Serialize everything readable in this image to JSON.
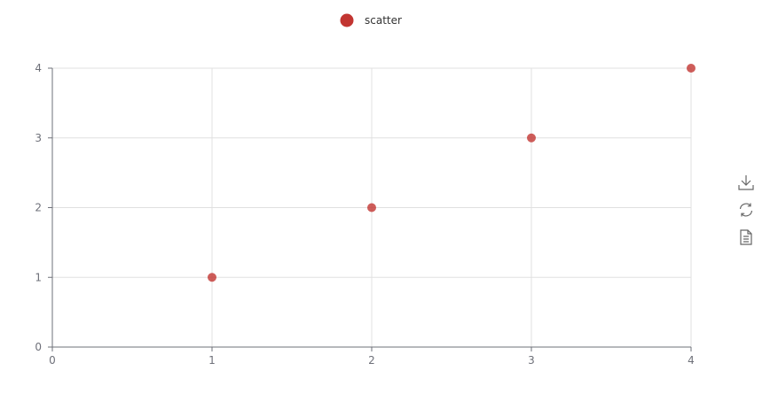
{
  "chart_data": {
    "type": "scatter",
    "title": "",
    "xlabel": "",
    "ylabel": "",
    "xlim": [
      0,
      4
    ],
    "ylim": [
      0,
      4
    ],
    "x_ticks": [
      0,
      1,
      2,
      3,
      4
    ],
    "y_ticks": [
      0,
      1,
      2,
      3,
      4
    ],
    "grid": true,
    "legend": {
      "position": "top-center"
    },
    "series": [
      {
        "name": "scatter",
        "color": "#c23531",
        "points": [
          [
            1,
            1
          ],
          [
            2,
            2
          ],
          [
            3,
            3
          ],
          [
            4,
            4
          ]
        ]
      }
    ]
  },
  "toolbox": {
    "items": [
      {
        "icon": "download-icon"
      },
      {
        "icon": "restore-icon"
      },
      {
        "icon": "data-view-icon"
      }
    ]
  }
}
